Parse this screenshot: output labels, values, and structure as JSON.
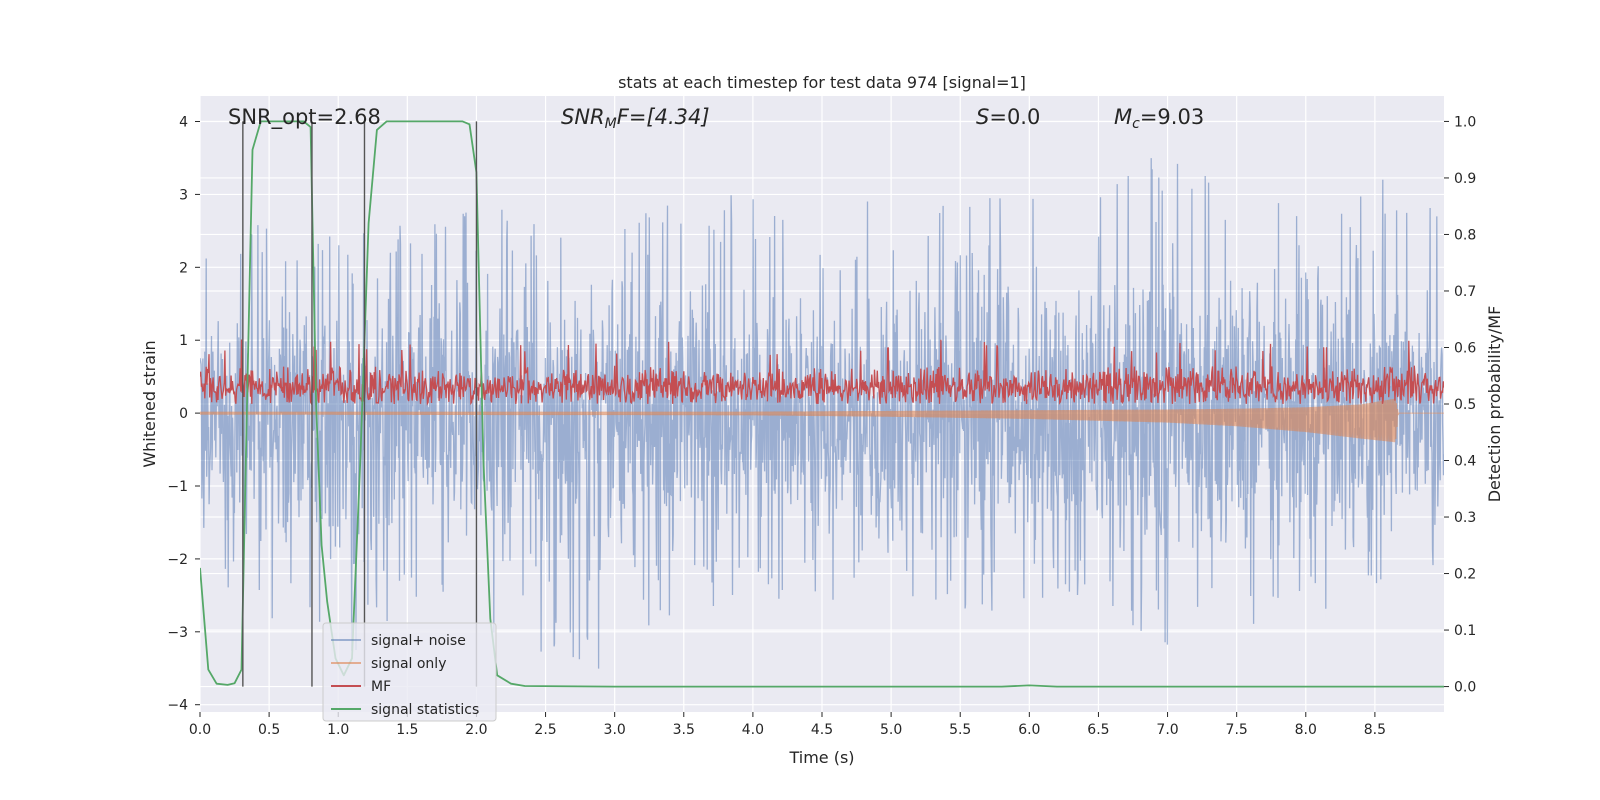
{
  "chart_data": {
    "type": "line",
    "title": "stats at each timestep for test data 974 [signal=1]",
    "xlabel": "Time (s)",
    "ylabel_left": "Whitened strain",
    "ylabel_right": "Detection probability/MF",
    "xlim": [
      0.0,
      9.0
    ],
    "ylim_left": [
      -4.1,
      4.35
    ],
    "ylim_right": [
      -0.045,
      1.045
    ],
    "x_ticks": [
      "0.0",
      "0.5",
      "1.0",
      "1.5",
      "2.0",
      "2.5",
      "3.0",
      "3.5",
      "4.0",
      "4.5",
      "5.0",
      "5.5",
      "6.0",
      "6.5",
      "7.0",
      "7.5",
      "8.0",
      "8.5"
    ],
    "y_ticks_left": [
      "−4",
      "−3",
      "−2",
      "−1",
      "0",
      "1",
      "2",
      "3",
      "4"
    ],
    "y_ticks_right": [
      "0.0",
      "0.1",
      "0.2",
      "0.3",
      "0.4",
      "0.5",
      "0.6",
      "0.7",
      "0.8",
      "0.9",
      "1.0"
    ],
    "grid": true,
    "background": "#eaeaf2",
    "legend_position": "lower-left",
    "annotations": {
      "snr_opt": "SNR_opt=2.68",
      "snr_mf_base": "SNR",
      "snr_mf_sub": "M",
      "snr_mf_rest": "F=[4.34]",
      "s_label": "S",
      "s_rest": "=0.0",
      "mc_base": "M",
      "mc_sub": "c",
      "mc_rest": "=9.03"
    },
    "vertical_lines_x": [
      0.31,
      0.81,
      1.19,
      2.0
    ],
    "series": [
      {
        "name": "signal+ noise",
        "color": "#4c72b0",
        "axis": "left",
        "envelope": [
          [
            0.0,
            2.2,
            -2.4
          ],
          [
            0.5,
            2.8,
            -2.9
          ],
          [
            1.0,
            2.4,
            -3.5
          ],
          [
            1.5,
            2.6,
            -2.6
          ],
          [
            2.0,
            2.9,
            -3.2
          ],
          [
            2.5,
            2.6,
            -3.3
          ],
          [
            3.0,
            2.8,
            -3.6
          ],
          [
            3.5,
            3.2,
            -2.7
          ],
          [
            4.0,
            3.0,
            -2.6
          ],
          [
            4.5,
            2.7,
            -2.6
          ],
          [
            5.0,
            3.1,
            -2.7
          ],
          [
            5.5,
            3.0,
            -2.9
          ],
          [
            6.0,
            3.0,
            -2.7
          ],
          [
            6.5,
            3.1,
            -2.8
          ],
          [
            7.0,
            4.0,
            -3.2
          ],
          [
            7.5,
            3.3,
            -3.0
          ],
          [
            8.0,
            3.0,
            -2.9
          ],
          [
            8.5,
            3.5,
            -3.1
          ],
          [
            9.0,
            3.0,
            -2.6
          ]
        ]
      },
      {
        "name": "signal only",
        "color": "#dd8452",
        "axis": "left",
        "envelope": [
          [
            0.0,
            0.02,
            -0.02
          ],
          [
            4.0,
            0.02,
            -0.03
          ],
          [
            5.0,
            0.03,
            -0.05
          ],
          [
            6.0,
            0.04,
            -0.08
          ],
          [
            7.0,
            0.05,
            -0.13
          ],
          [
            7.5,
            0.06,
            -0.18
          ],
          [
            8.0,
            0.08,
            -0.26
          ],
          [
            8.4,
            0.12,
            -0.35
          ],
          [
            8.65,
            0.2,
            -0.4
          ],
          [
            8.67,
            0.0,
            0.0
          ],
          [
            9.0,
            0.0,
            0.0
          ]
        ]
      },
      {
        "name": "MF",
        "color": "#c44e52",
        "axis": "right",
        "base": 0.53,
        "spread": 0.04,
        "peak_max": 0.615
      },
      {
        "name": "signal statistics",
        "color": "#55a868",
        "axis": "right",
        "x": [
          0.0,
          0.06,
          0.12,
          0.2,
          0.25,
          0.3,
          0.34,
          0.38,
          0.44,
          0.55,
          0.75,
          0.8,
          0.84,
          0.88,
          0.92,
          0.98,
          1.04,
          1.1,
          1.16,
          1.22,
          1.28,
          1.35,
          1.7,
          1.9,
          1.95,
          2.0,
          2.05,
          2.1,
          2.15,
          2.25,
          2.35,
          3.0,
          5.8,
          6.0,
          6.2,
          7.0,
          9.0
        ],
        "y": [
          0.21,
          0.03,
          0.005,
          0.003,
          0.006,
          0.03,
          0.5,
          0.95,
          1.0,
          1.0,
          1.0,
          0.99,
          0.5,
          0.25,
          0.15,
          0.05,
          0.02,
          0.05,
          0.4,
          0.82,
          0.985,
          1.0,
          1.0,
          1.0,
          0.995,
          0.91,
          0.4,
          0.12,
          0.02,
          0.005,
          0.001,
          0.0,
          0.0,
          0.002,
          0.0,
          0.0,
          0.0
        ]
      }
    ]
  }
}
